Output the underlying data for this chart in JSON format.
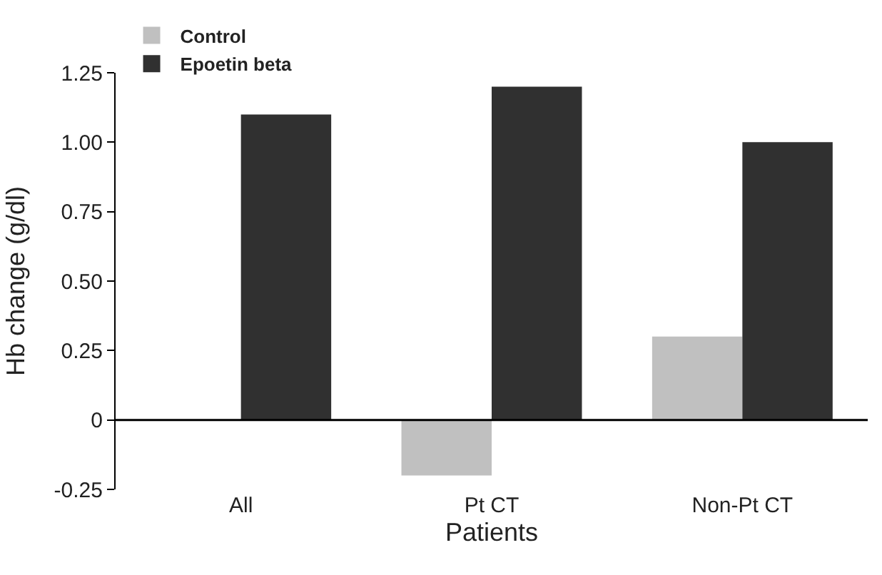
{
  "chart_data": {
    "type": "bar",
    "xlabel": "Patients",
    "ylabel": "Hb change (g/dl)",
    "categories": [
      "All",
      "Pt CT",
      "Non-Pt CT"
    ],
    "series": [
      {
        "name": "Control",
        "color": "#c0c0c0",
        "values": [
          0,
          -0.2,
          0.3
        ]
      },
      {
        "name": "Epoetin beta",
        "color": "#303030",
        "values": [
          1.1,
          1.2,
          1.0
        ]
      }
    ],
    "ylim": [
      -0.25,
      1.25
    ],
    "yticks": [
      {
        "value": -0.25,
        "label": "-0.25"
      },
      0,
      {
        "value": 0.25,
        "label": "0.25"
      },
      {
        "value": 0.5,
        "label": "0.50"
      },
      {
        "value": 0.75,
        "label": "0.75"
      },
      {
        "value": 1,
        "label": "1.00"
      },
      {
        "value": 1.25,
        "label": "1.25"
      }
    ],
    "legend": "top left"
  }
}
